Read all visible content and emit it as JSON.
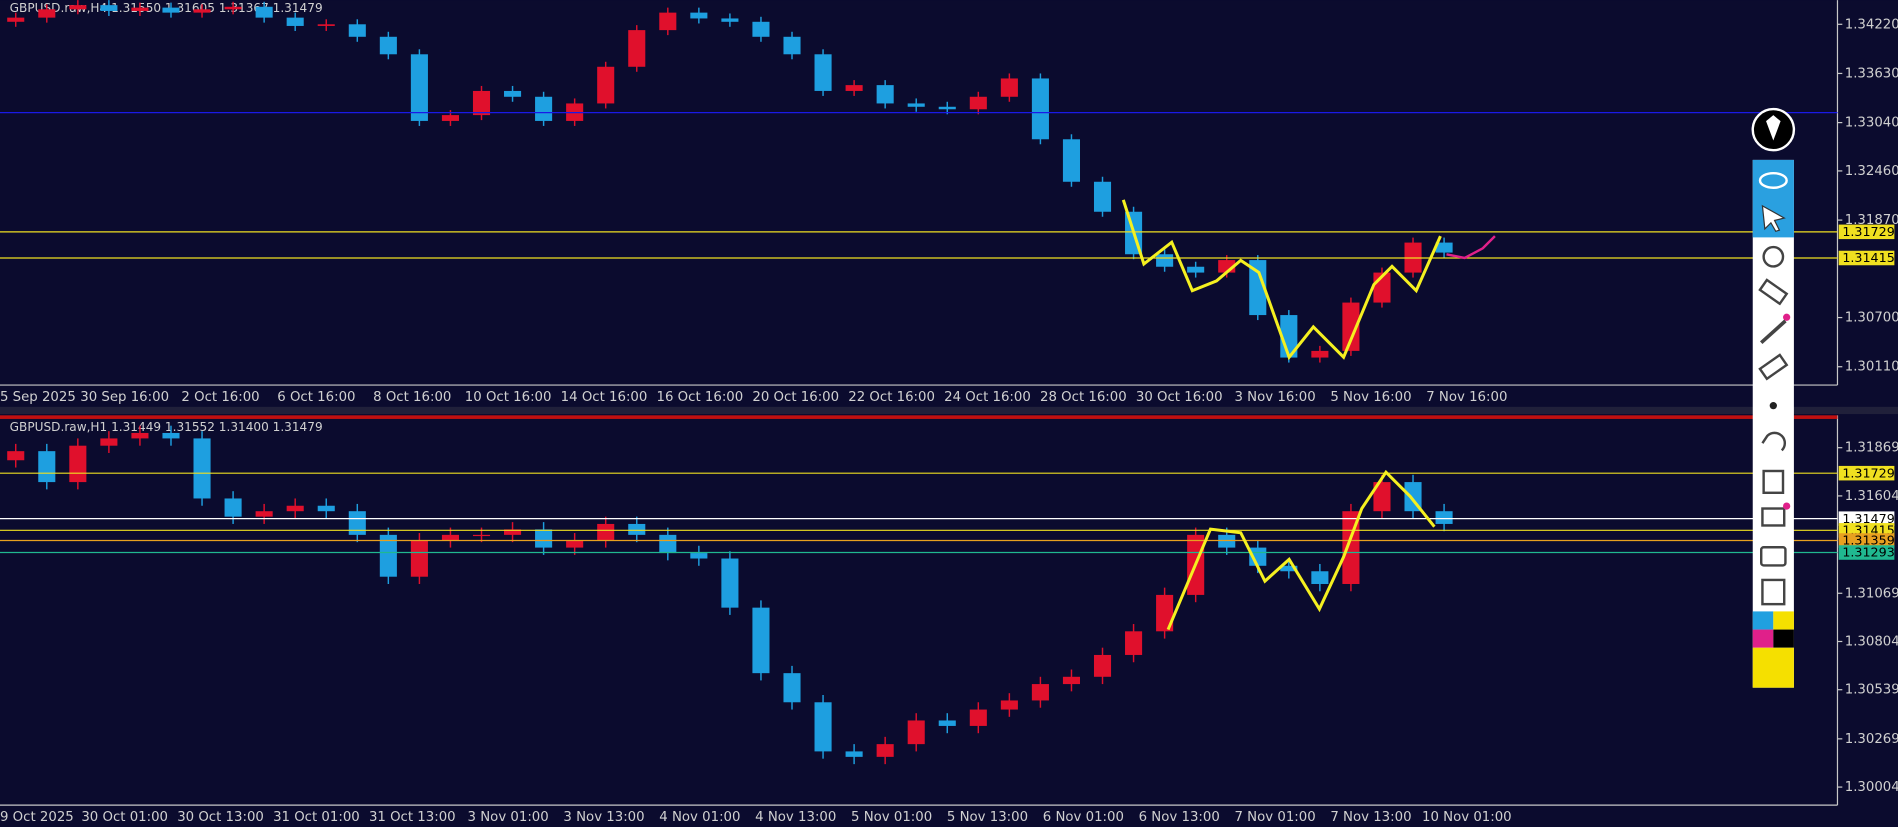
{
  "chart_data": [
    {
      "type": "candlestick",
      "title": "GBPUSD.raw,H4  1.31550 1.31605 1.31367 1.31479",
      "up_color": "#e0102c",
      "down_color": "#1e9fe0",
      "ylim": [
        1.2989,
        1.3451
      ],
      "yticks": [
        {
          "value": 1.3422,
          "label": "1.34220"
        },
        {
          "value": 1.3363,
          "label": "1.33630"
        },
        {
          "value": 1.3304,
          "label": "1.33040"
        },
        {
          "value": 1.3246,
          "label": "1.32460"
        },
        {
          "value": 1.3187,
          "label": "1.31870"
        },
        {
          "value": 1.307,
          "label": "1.30700"
        },
        {
          "value": 1.3011,
          "label": "1.30110"
        }
      ],
      "xlabels": [
        "5 Sep 2025",
        "30 Sep 16:00",
        "2 Oct 16:00",
        "6 Oct 16:00",
        "8 Oct 16:00",
        "10 Oct 16:00",
        "14 Oct 16:00",
        "16 Oct 16:00",
        "20 Oct 16:00",
        "22 Oct 16:00",
        "24 Oct 16:00",
        "28 Oct 16:00",
        "30 Oct 16:00",
        "3 Nov 16:00",
        "5 Nov 16:00",
        "7 Nov 16:00"
      ],
      "open": [
        1.3425,
        1.343,
        1.344,
        1.3445,
        1.3438,
        1.3442,
        1.3436,
        1.344,
        1.3443,
        1.343,
        1.342,
        1.3422,
        1.3407,
        1.3386,
        1.3306,
        1.3313,
        1.3342,
        1.3335,
        1.3306,
        1.3327,
        1.3371,
        1.3415,
        1.3436,
        1.3429,
        1.3425,
        1.3407,
        1.3386,
        1.3342,
        1.3349,
        1.3327,
        1.3323,
        1.332,
        1.3335,
        1.3357,
        1.3284,
        1.3233,
        1.3197,
        1.3146,
        1.3131,
        1.3124,
        1.3139,
        1.3073,
        1.3022,
        1.303,
        1.3088,
        1.3124,
        1.316
      ],
      "high": [
        1.3436,
        1.3446,
        1.3451,
        1.3451,
        1.3448,
        1.3448,
        1.3446,
        1.3449,
        1.3449,
        1.3436,
        1.3428,
        1.3428,
        1.3413,
        1.3392,
        1.3319,
        1.3348,
        1.3348,
        1.3341,
        1.3333,
        1.3377,
        1.3421,
        1.3442,
        1.3442,
        1.3435,
        1.3431,
        1.3413,
        1.3392,
        1.3355,
        1.3355,
        1.3333,
        1.3329,
        1.3341,
        1.3363,
        1.3363,
        1.329,
        1.3239,
        1.3203,
        1.3152,
        1.3137,
        1.3145,
        1.3145,
        1.3079,
        1.3036,
        1.3094,
        1.313,
        1.3166,
        1.3166
      ],
      "low": [
        1.3419,
        1.3424,
        1.3434,
        1.3432,
        1.3432,
        1.343,
        1.343,
        1.3434,
        1.3424,
        1.3414,
        1.3414,
        1.3401,
        1.338,
        1.33,
        1.33,
        1.3307,
        1.3329,
        1.33,
        1.33,
        1.3321,
        1.3365,
        1.3409,
        1.3423,
        1.3419,
        1.3401,
        1.338,
        1.3336,
        1.3336,
        1.3321,
        1.3317,
        1.3314,
        1.3314,
        1.3329,
        1.3278,
        1.3227,
        1.3191,
        1.314,
        1.3125,
        1.3118,
        1.3118,
        1.3067,
        1.3016,
        1.3016,
        1.3024,
        1.3082,
        1.3118,
        1.3142
      ],
      "close": [
        1.343,
        1.344,
        1.3445,
        1.3438,
        1.3442,
        1.3436,
        1.344,
        1.3443,
        1.343,
        1.342,
        1.3422,
        1.3407,
        1.3386,
        1.3306,
        1.3313,
        1.3342,
        1.3335,
        1.3306,
        1.3327,
        1.3371,
        1.3415,
        1.3436,
        1.3429,
        1.3425,
        1.3407,
        1.3386,
        1.3342,
        1.3349,
        1.3327,
        1.3323,
        1.332,
        1.3335,
        1.3357,
        1.3284,
        1.3233,
        1.3197,
        1.3146,
        1.3131,
        1.3124,
        1.3139,
        1.3073,
        1.3022,
        1.303,
        1.3088,
        1.3124,
        1.316,
        1.3148
      ],
      "hlines": [
        {
          "value": 1.3316,
          "color": "#1a1ae6"
        },
        {
          "value": 1.31729,
          "label": "1.31729",
          "color": "#f0e020"
        },
        {
          "value": 1.31415,
          "label": "1.31415",
          "color": "#f0e020"
        }
      ]
    },
    {
      "type": "candlestick",
      "title": "GBPUSD.raw,H1  1.31449 1.31552 1.31400 1.31479",
      "up_color": "#e0102c",
      "down_color": "#1e9fe0",
      "ylim": [
        1.29905,
        1.32027
      ],
      "yticks": [
        {
          "value": 1.31869,
          "label": "1.31869"
        },
        {
          "value": 1.31604,
          "label": "1.31604"
        },
        {
          "value": 1.31069,
          "label": "1.31069"
        },
        {
          "value": 1.30804,
          "label": "1.30804"
        },
        {
          "value": 1.30539,
          "label": "1.30539"
        },
        {
          "value": 1.30269,
          "label": "1.30269"
        },
        {
          "value": 1.30004,
          "label": "1.30004"
        }
      ],
      "xlabels": [
        "9 Oct 2025",
        "30 Oct 01:00",
        "30 Oct 13:00",
        "31 Oct 01:00",
        "31 Oct 13:00",
        "3 Nov 01:00",
        "3 Nov 13:00",
        "4 Nov 01:00",
        "4 Nov 13:00",
        "5 Nov 01:00",
        "5 Nov 13:00",
        "6 Nov 01:00",
        "6 Nov 13:00",
        "7 Nov 01:00",
        "7 Nov 13:00",
        "10 Nov 01:00"
      ],
      "open": [
        1.318,
        1.3185,
        1.3168,
        1.3188,
        1.3192,
        1.3195,
        1.3192,
        1.3159,
        1.3149,
        1.3152,
        1.3155,
        1.3152,
        1.3139,
        1.3116,
        1.3136,
        1.3139,
        1.3139,
        1.3142,
        1.3132,
        1.3136,
        1.3145,
        1.3139,
        1.3129,
        1.3126,
        1.3099,
        1.3063,
        1.3047,
        1.302,
        1.3017,
        1.3024,
        1.3037,
        1.3034,
        1.3043,
        1.3048,
        1.3057,
        1.3061,
        1.3073,
        1.3086,
        1.3106,
        1.3139,
        1.3132,
        1.3122,
        1.3119,
        1.3112,
        1.3152,
        1.3168,
        1.3152
      ],
      "high": [
        1.3189,
        1.3189,
        1.3192,
        1.3196,
        1.3199,
        1.3199,
        1.3196,
        1.3163,
        1.3156,
        1.3159,
        1.3159,
        1.3156,
        1.3143,
        1.314,
        1.3143,
        1.3143,
        1.3146,
        1.3146,
        1.314,
        1.3149,
        1.3149,
        1.3143,
        1.3133,
        1.313,
        1.3103,
        1.3067,
        1.3051,
        1.3024,
        1.3028,
        1.3041,
        1.3041,
        1.3047,
        1.3052,
        1.3061,
        1.3065,
        1.3077,
        1.309,
        1.311,
        1.3143,
        1.3143,
        1.3136,
        1.3126,
        1.3123,
        1.3156,
        1.3172,
        1.3172,
        1.3156
      ],
      "low": [
        1.3176,
        1.3164,
        1.3164,
        1.3184,
        1.3188,
        1.3188,
        1.3155,
        1.3145,
        1.3145,
        1.3148,
        1.3148,
        1.3135,
        1.3112,
        1.3112,
        1.3132,
        1.3135,
        1.3135,
        1.3128,
        1.3128,
        1.3132,
        1.3135,
        1.3125,
        1.3122,
        1.3095,
        1.3059,
        1.3043,
        1.3016,
        1.3013,
        1.3013,
        1.302,
        1.303,
        1.303,
        1.3039,
        1.3044,
        1.3053,
        1.3057,
        1.3069,
        1.3082,
        1.3102,
        1.3128,
        1.3118,
        1.3115,
        1.3108,
        1.3108,
        1.3148,
        1.3148,
        1.3141
      ],
      "close": [
        1.3185,
        1.3168,
        1.3188,
        1.3192,
        1.3195,
        1.3192,
        1.3159,
        1.3149,
        1.3152,
        1.3155,
        1.3152,
        1.3139,
        1.3116,
        1.3136,
        1.3139,
        1.3139,
        1.3142,
        1.3132,
        1.3136,
        1.3145,
        1.3139,
        1.3129,
        1.3126,
        1.3099,
        1.3063,
        1.3047,
        1.302,
        1.3017,
        1.3024,
        1.3037,
        1.3034,
        1.3043,
        1.3048,
        1.3057,
        1.3061,
        1.3073,
        1.3086,
        1.3106,
        1.3139,
        1.3132,
        1.3122,
        1.3119,
        1.3112,
        1.3152,
        1.3168,
        1.3152,
        1.3145
      ],
      "hlines": [
        {
          "value": 1.31729,
          "label": "1.31729",
          "color": "#f0e020"
        },
        {
          "value": 1.31479,
          "label": "1.31479",
          "color": "#ffffff"
        },
        {
          "value": 1.31415,
          "label": "1.31415",
          "color": "#f0e020"
        },
        {
          "value": 1.31359,
          "label": "1.31359",
          "color": "#e8a020"
        },
        {
          "value": 1.31293,
          "label": "1.31293",
          "color": "#20b890"
        }
      ]
    }
  ]
}
